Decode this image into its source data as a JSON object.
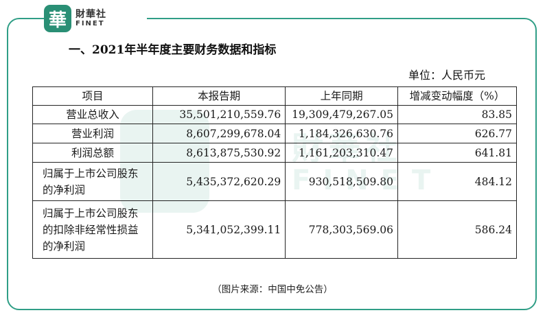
{
  "brand": {
    "mark": "華",
    "name_cn": "財華社",
    "name_en": "FINET",
    "colors": {
      "brand": "#2a8f75",
      "frame": "#2f9e86"
    }
  },
  "document": {
    "title": "一、2021年半年度主要财务数据和指标",
    "unit": "单位：人民币元",
    "table": {
      "headers": [
        "项目",
        "本报告期",
        "上年同期",
        "增减变动幅度（%）"
      ],
      "rows": [
        {
          "item": "营业总收入",
          "current": "35,501,210,559.76",
          "prior": "19,309,479,267.05",
          "change": "83.85"
        },
        {
          "item": "营业利润",
          "current": "8,607,299,678.04",
          "prior": "1,184,326,630.76",
          "change": "626.77"
        },
        {
          "item": "利润总额",
          "current": "8,613,875,530.92",
          "prior": "1,161,203,310.47",
          "change": "641.81"
        },
        {
          "item": "归属于上市公司股东的净利润",
          "current": "5,435,372,620.29",
          "prior": "930,518,509.80",
          "change": "484.12"
        },
        {
          "item": "归属于上市公司股东的扣除非经常性损益的净利润",
          "current": "5,341,052,399.11",
          "prior": "778,303,569.06",
          "change": "586.24"
        }
      ]
    },
    "caption": "（图片来源：中国中免公告）"
  }
}
